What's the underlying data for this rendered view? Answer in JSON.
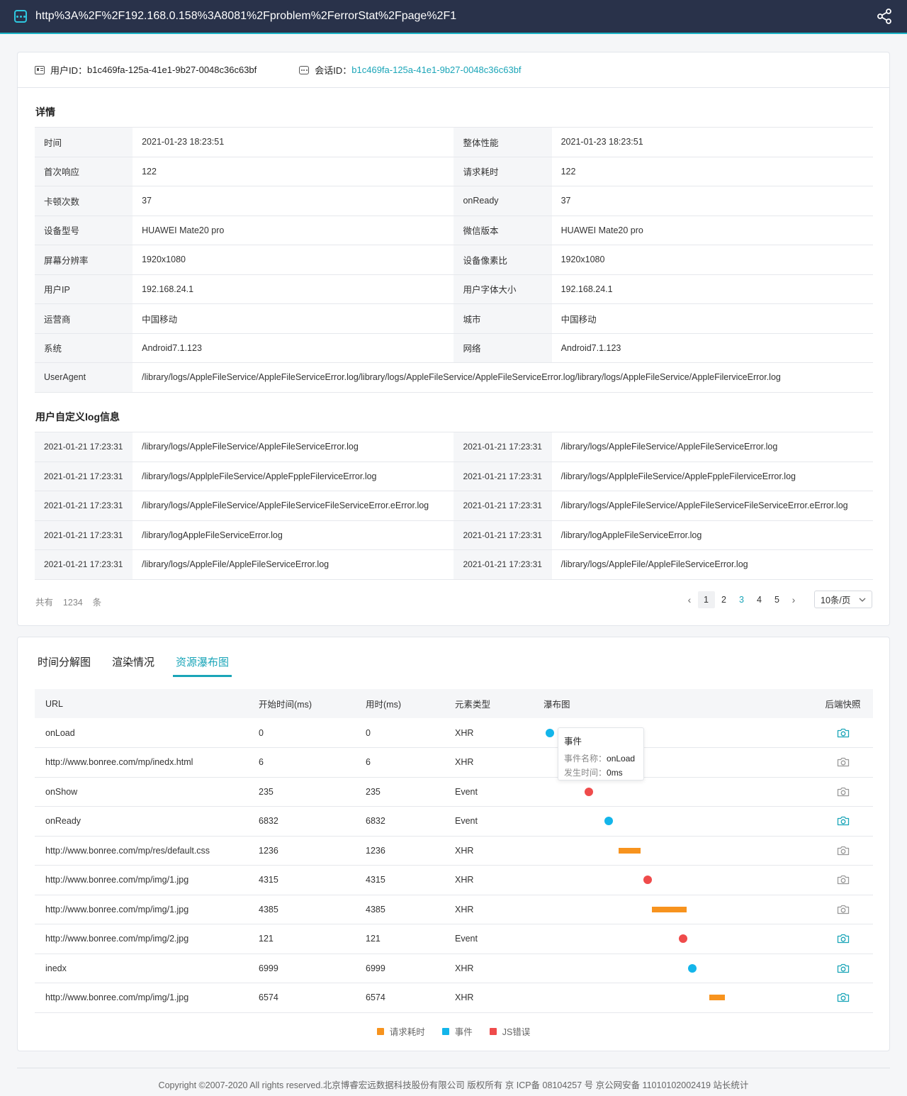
{
  "topbar": {
    "url": "http%3A%2F%2F192.168.0.158%3A8081%2Fproblem%2FerrorStat%2Fpage%2F1"
  },
  "ids": {
    "user_label": "用户ID：",
    "user_value": "b1c469fa-125a-41e1-9b27-0048c36c63bf",
    "session_label": "会话ID：",
    "session_value": "b1c469fa-125a-41e1-9b27-0048c36c63bf"
  },
  "details": {
    "title": "详情",
    "rows": [
      {
        "k1": "时间",
        "v1": "2021-01-23  18:23:51",
        "k2": "整体性能",
        "v2": "2021-01-23  18:23:51"
      },
      {
        "k1": "首次响应",
        "v1": "122",
        "k2": "请求耗时",
        "v2": "122"
      },
      {
        "k1": "卡顿次数",
        "v1": "37",
        "k2": "onReady",
        "v2": "37"
      },
      {
        "k1": "设备型号",
        "v1": "HUAWEI Mate20 pro",
        "k2": "微信版本",
        "v2": "HUAWEI Mate20 pro"
      },
      {
        "k1": "屏幕分辨率",
        "v1": "1920x1080",
        "k2": "设备像素比",
        "v2": "1920x1080"
      },
      {
        "k1": "用户IP",
        "v1": "192.168.24.1",
        "k2": "用户字体大小",
        "v2": "192.168.24.1"
      },
      {
        "k1": "运营商",
        "v1": "中国移动",
        "k2": "城市",
        "v2": "中国移动"
      },
      {
        "k1": "系统",
        "v1": "Android7.1.123",
        "k2": "网络",
        "v2": "Android7.1.123"
      }
    ],
    "useragent_label": "UserAgent",
    "useragent_value": "/library/logs/AppleFileService/AppleFileServiceError.log/library/logs/AppleFileService/AppleFileServiceError.log/library/logs/AppleFileService/AppleFilerviceError.log"
  },
  "logs": {
    "title": "用户自定义log信息",
    "rows": [
      {
        "t1": "2021-01-21   17:23:31",
        "m1": "/library/logs/AppleFileService/AppleFileServiceError.log",
        "t2": "2021-01-21   17:23:31",
        "m2": "/library/logs/AppleFileService/AppleFileServiceError.log"
      },
      {
        "t1": "2021-01-21   17:23:31",
        "m1": "/library/logs/ApplpleFileService/AppleFppleFilerviceError.log",
        "t2": "2021-01-21   17:23:31",
        "m2": "/library/logs/ApplpleFileService/AppleFppleFilerviceError.log"
      },
      {
        "t1": "2021-01-21   17:23:31",
        "m1": "/library/logs/AppleFileService/AppleFileServiceFileServiceError.eError.log",
        "t2": "2021-01-21   17:23:31",
        "m2": "/library/logs/AppleFileService/AppleFileServiceFileServiceError.eError.log"
      },
      {
        "t1": "2021-01-21   17:23:31",
        "m1": "/library/logAppleFileServiceError.log",
        "t2": "2021-01-21   17:23:31",
        "m2": "/library/logAppleFileServiceError.log"
      },
      {
        "t1": "2021-01-21   17:23:31",
        "m1": "/library/logs/AppleFile/AppleFileServiceError.log",
        "t2": "2021-01-21   17:23:31",
        "m2": "/library/logs/AppleFile/AppleFileServiceError.log"
      }
    ]
  },
  "pagination": {
    "total_prefix": "共有",
    "total": "1234",
    "total_suffix": "条",
    "pages": [
      "1",
      "2",
      "3",
      "4",
      "5"
    ],
    "current_page": "3",
    "page_size": "10条/页"
  },
  "tabs": [
    "时间分解图",
    "渲染情况",
    "资源瀑布图"
  ],
  "active_tab": 2,
  "waterfall": {
    "headers": [
      "URL",
      "开始时间(ms)",
      "用时(ms)",
      "元素类型",
      "瀑布图",
      "后端快照"
    ],
    "rows": [
      {
        "url": "onLoad",
        "start": "0",
        "dur": "0",
        "type": "XHR",
        "mark": "dot",
        "color": "#13b5ea",
        "pos": 0.0,
        "len": 0,
        "snap": true
      },
      {
        "url": "http://www.bonree.com/mp/inedx.html",
        "start": "6",
        "dur": "6",
        "type": "XHR",
        "mark": "none",
        "color": "",
        "pos": 0.0,
        "len": 0,
        "snap": false
      },
      {
        "url": "onShow",
        "start": "235",
        "dur": "235",
        "type": "Event",
        "mark": "dot",
        "color": "#ef4b4b",
        "pos": 0.14,
        "len": 0,
        "snap": false
      },
      {
        "url": "onReady",
        "start": "6832",
        "dur": "6832",
        "type": "Event",
        "mark": "dot",
        "color": "#13b5ea",
        "pos": 0.21,
        "len": 0,
        "snap": true
      },
      {
        "url": "http://www.bonree.com/mp/res/default.css",
        "start": "1236",
        "dur": "1236",
        "type": "XHR",
        "mark": "bar",
        "color": "#f7931e",
        "pos": 0.26,
        "len": 0.08,
        "snap": false
      },
      {
        "url": "http://www.bonree.com/mp/img/1.jpg",
        "start": "4315",
        "dur": "4315",
        "type": "XHR",
        "mark": "dot",
        "color": "#ef4b4b",
        "pos": 0.35,
        "len": 0,
        "snap": false
      },
      {
        "url": "http://www.bonree.com/mp/img/1.jpg",
        "start": "4385",
        "dur": "4385",
        "type": "XHR",
        "mark": "bar",
        "color": "#f7931e",
        "pos": 0.38,
        "len": 0.125,
        "snap": false
      },
      {
        "url": "http://www.bonree.com/mp/img/2.jpg",
        "start": "121",
        "dur": "121",
        "type": "Event",
        "mark": "dot",
        "color": "#ef4b4b",
        "pos": 0.475,
        "len": 0,
        "snap": true
      },
      {
        "url": "inedx",
        "start": "6999",
        "dur": "6999",
        "type": "XHR",
        "mark": "dot",
        "color": "#13b5ea",
        "pos": 0.51,
        "len": 0,
        "snap": true
      },
      {
        "url": "http://www.bonree.com/mp/img/1.jpg",
        "start": "6574",
        "dur": "6574",
        "type": "XHR",
        "mark": "bar",
        "color": "#f7931e",
        "pos": 0.585,
        "len": 0.055,
        "snap": true
      }
    ],
    "tooltip": {
      "title": "事件",
      "name_label": "事件名称：",
      "name_value": "onLoad",
      "time_label": "发生时间：",
      "time_value": "0ms"
    },
    "legend": [
      {
        "label": "请求耗时",
        "color": "#f7931e"
      },
      {
        "label": "事件",
        "color": "#13b5ea"
      },
      {
        "label": "JS错误",
        "color": "#ef4b4b"
      }
    ]
  },
  "colors": {
    "accent": "#1aa5b8",
    "snap_active": "#1aa5b8",
    "snap_inactive": "#999999"
  },
  "footer": {
    "text": "Copyright ©2007-2020 All rights reserved.北京博睿宏远数据科技股份有限公司 版权所有 京 ICP备 08104257 号 京公网安备 11010102002419 站长统计"
  }
}
